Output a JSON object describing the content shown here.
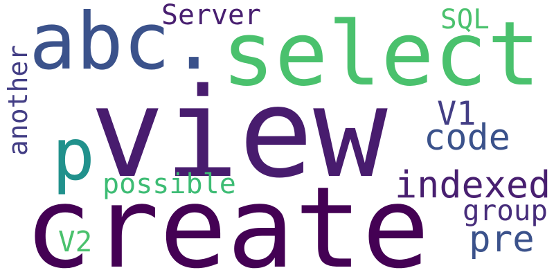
{
  "palette": {
    "dark_purple": "#440154",
    "purple": "#481f70",
    "indigo": "#433e85",
    "blue": "#3b528b",
    "slate_blue": "#31688e",
    "teal": "#21918c",
    "green": "#3dbc74",
    "light_green": "#4ac16d"
  },
  "words": [
    {
      "text": "view",
      "color": "#481c6e",
      "orientation": "horizontal"
    },
    {
      "text": "create",
      "color": "#440154",
      "orientation": "horizontal"
    },
    {
      "text": "select",
      "color": "#4ac16d",
      "orientation": "horizontal"
    },
    {
      "text": "abc.",
      "color": "#3b528b",
      "orientation": "horizontal"
    },
    {
      "text": "p",
      "color": "#21918c",
      "orientation": "horizontal"
    },
    {
      "text": "indexed",
      "color": "#481f70",
      "orientation": "horizontal"
    },
    {
      "text": "code",
      "color": "#3b528b",
      "orientation": "horizontal"
    },
    {
      "text": "V1",
      "color": "#433e85",
      "orientation": "horizontal"
    },
    {
      "text": "pre",
      "color": "#3b528b",
      "orientation": "horizontal"
    },
    {
      "text": "Server",
      "color": "#481f70",
      "orientation": "horizontal"
    },
    {
      "text": "SQL",
      "color": "#4ac16d",
      "orientation": "horizontal"
    },
    {
      "text": "possible",
      "color": "#3dbc74",
      "orientation": "horizontal"
    },
    {
      "text": "group",
      "color": "#472d7b",
      "orientation": "horizontal"
    },
    {
      "text": "V2",
      "color": "#4ac16d",
      "orientation": "horizontal"
    },
    {
      "text": "another",
      "color": "#433e85",
      "orientation": "vertical"
    }
  ]
}
